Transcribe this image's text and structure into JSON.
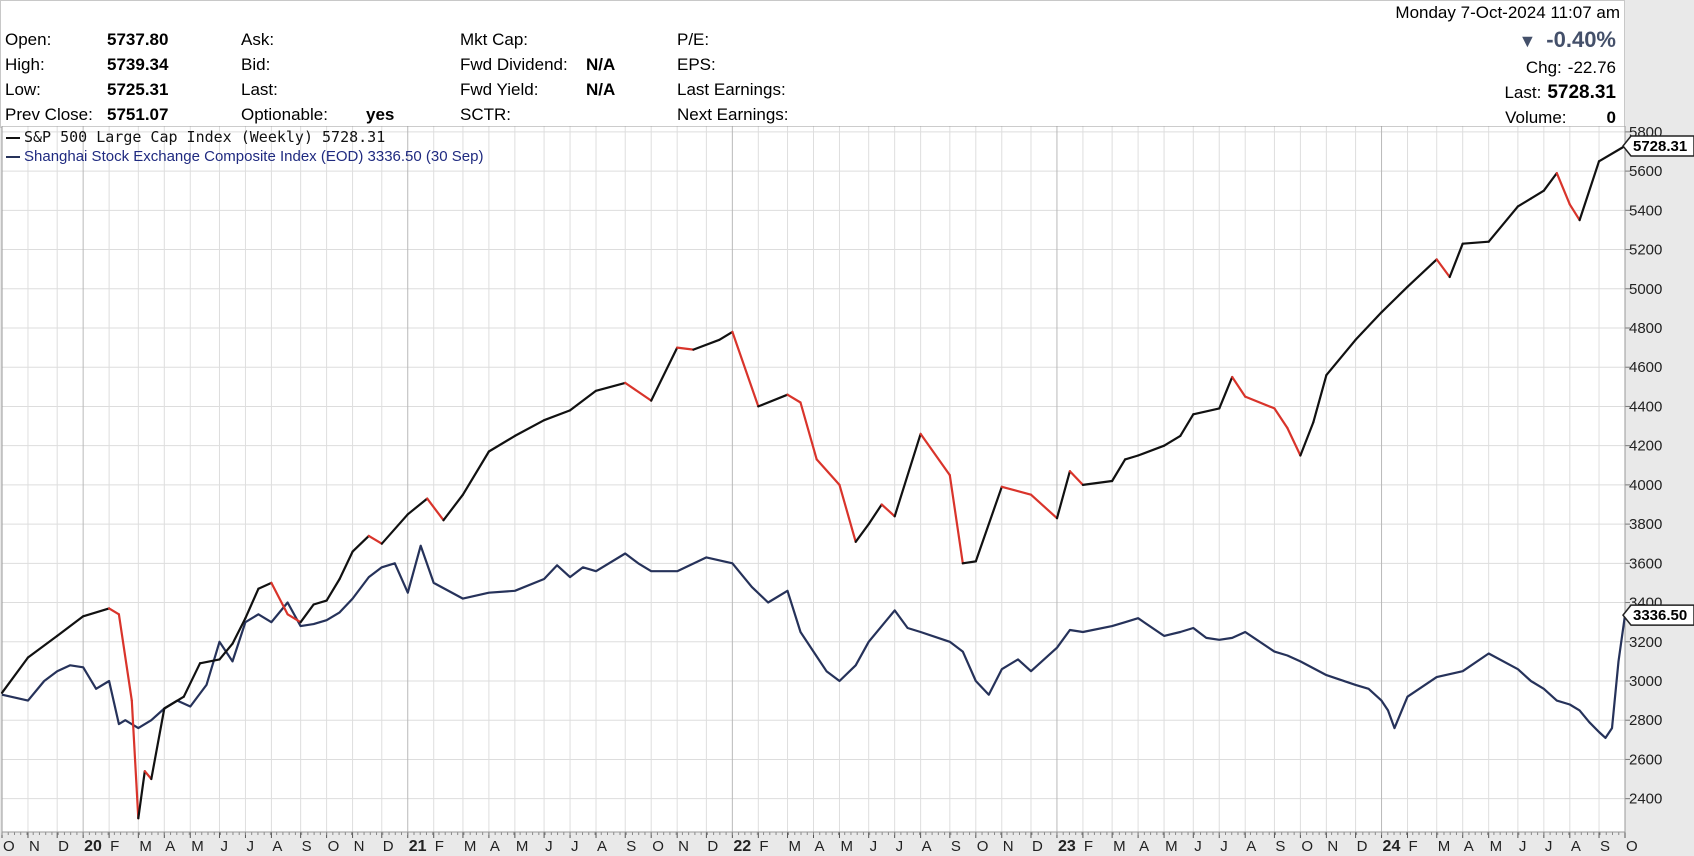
{
  "header": {
    "datetime": "Monday  7-Oct-2024  11:07 am",
    "col1": [
      {
        "label": "Open:",
        "value": "5737.80"
      },
      {
        "label": "High:",
        "value": "5739.34"
      },
      {
        "label": "Low:",
        "value": "5725.31"
      },
      {
        "label": "Prev Close:",
        "value": "5751.07"
      }
    ],
    "col2": [
      {
        "label": "Ask:",
        "value": ""
      },
      {
        "label": "Bid:",
        "value": ""
      },
      {
        "label": "Last:",
        "value": ""
      },
      {
        "label": "Optionable:",
        "value": "yes"
      }
    ],
    "col3": [
      {
        "label": "Mkt Cap:",
        "value": ""
      },
      {
        "label": "Fwd Dividend:",
        "value": "N/A"
      },
      {
        "label": "Fwd Yield:",
        "value": "N/A"
      },
      {
        "label": "SCTR:",
        "value": ""
      }
    ],
    "col4": [
      {
        "label": "P/E:",
        "value": ""
      },
      {
        "label": "EPS:",
        "value": ""
      },
      {
        "label": "Last Earnings:",
        "value": ""
      },
      {
        "label": "Next Earnings:",
        "value": ""
      }
    ],
    "pct_change": "-0.40%",
    "chg_label": "Chg:",
    "chg_value": "-22.76",
    "last_label": "Last:",
    "last_value": "5728.31",
    "volume_label": "Volume:",
    "volume_value": "0"
  },
  "chart_data": {
    "type": "line",
    "yticks": [
      2400,
      2600,
      2800,
      3000,
      3200,
      3400,
      3600,
      3800,
      4000,
      4200,
      4400,
      4600,
      4800,
      5000,
      5200,
      5400,
      5600,
      5800
    ],
    "ylim": [
      2230,
      5830
    ],
    "xlim": [
      2019.79,
      2024.79
    ],
    "x_tick_labels": [
      {
        "x": 2019.79,
        "label": "O"
      },
      {
        "x": 2019.87,
        "label": "N"
      },
      {
        "x": 2019.96,
        "label": "D"
      },
      {
        "x": 2020.04,
        "label": "20",
        "year": true
      },
      {
        "x": 2020.12,
        "label": "F"
      },
      {
        "x": 2020.21,
        "label": "M"
      },
      {
        "x": 2020.29,
        "label": "A"
      },
      {
        "x": 2020.37,
        "label": "M"
      },
      {
        "x": 2020.46,
        "label": "J"
      },
      {
        "x": 2020.54,
        "label": "J"
      },
      {
        "x": 2020.62,
        "label": "A"
      },
      {
        "x": 2020.71,
        "label": "S"
      },
      {
        "x": 2020.79,
        "label": "O"
      },
      {
        "x": 2020.87,
        "label": "N"
      },
      {
        "x": 2020.96,
        "label": "D"
      },
      {
        "x": 2021.04,
        "label": "21",
        "year": true
      },
      {
        "x": 2021.12,
        "label": "F"
      },
      {
        "x": 2021.21,
        "label": "M"
      },
      {
        "x": 2021.29,
        "label": "A"
      },
      {
        "x": 2021.37,
        "label": "M"
      },
      {
        "x": 2021.46,
        "label": "J"
      },
      {
        "x": 2021.54,
        "label": "J"
      },
      {
        "x": 2021.62,
        "label": "A"
      },
      {
        "x": 2021.71,
        "label": "S"
      },
      {
        "x": 2021.79,
        "label": "O"
      },
      {
        "x": 2021.87,
        "label": "N"
      },
      {
        "x": 2021.96,
        "label": "D"
      },
      {
        "x": 2022.04,
        "label": "22",
        "year": true
      },
      {
        "x": 2022.12,
        "label": "F"
      },
      {
        "x": 2022.21,
        "label": "M"
      },
      {
        "x": 2022.29,
        "label": "A"
      },
      {
        "x": 2022.37,
        "label": "M"
      },
      {
        "x": 2022.46,
        "label": "J"
      },
      {
        "x": 2022.54,
        "label": "J"
      },
      {
        "x": 2022.62,
        "label": "A"
      },
      {
        "x": 2022.71,
        "label": "S"
      },
      {
        "x": 2022.79,
        "label": "O"
      },
      {
        "x": 2022.87,
        "label": "N"
      },
      {
        "x": 2022.96,
        "label": "D"
      },
      {
        "x": 2023.04,
        "label": "23",
        "year": true
      },
      {
        "x": 2023.12,
        "label": "F"
      },
      {
        "x": 2023.21,
        "label": "M"
      },
      {
        "x": 2023.29,
        "label": "A"
      },
      {
        "x": 2023.37,
        "label": "M"
      },
      {
        "x": 2023.46,
        "label": "J"
      },
      {
        "x": 2023.54,
        "label": "J"
      },
      {
        "x": 2023.62,
        "label": "A"
      },
      {
        "x": 2023.71,
        "label": "S"
      },
      {
        "x": 2023.79,
        "label": "O"
      },
      {
        "x": 2023.87,
        "label": "N"
      },
      {
        "x": 2023.96,
        "label": "D"
      },
      {
        "x": 2024.04,
        "label": "24",
        "year": true
      },
      {
        "x": 2024.12,
        "label": "F"
      },
      {
        "x": 2024.21,
        "label": "M"
      },
      {
        "x": 2024.29,
        "label": "A"
      },
      {
        "x": 2024.37,
        "label": "M"
      },
      {
        "x": 2024.46,
        "label": "J"
      },
      {
        "x": 2024.54,
        "label": "J"
      },
      {
        "x": 2024.62,
        "label": "A"
      },
      {
        "x": 2024.71,
        "label": "S"
      },
      {
        "x": 2024.79,
        "label": "O"
      }
    ],
    "grid": true,
    "legend_position": "top-left",
    "series": [
      {
        "name": "S&P 500 Large Cap Index (Weekly) 5728.31",
        "color": "#111111",
        "down_color": "#d9342b",
        "last_label": "5728.31",
        "x": [
          2019.79,
          2019.87,
          2019.96,
          2020.04,
          2020.12,
          2020.15,
          2020.19,
          2020.21,
          2020.23,
          2020.25,
          2020.29,
          2020.35,
          2020.4,
          2020.46,
          2020.5,
          2020.54,
          2020.58,
          2020.62,
          2020.67,
          2020.71,
          2020.75,
          2020.79,
          2020.83,
          2020.87,
          2020.92,
          2020.96,
          2021.04,
          2021.1,
          2021.15,
          2021.21,
          2021.29,
          2021.37,
          2021.46,
          2021.54,
          2021.62,
          2021.71,
          2021.79,
          2021.87,
          2021.92,
          2022.0,
          2022.04,
          2022.12,
          2022.21,
          2022.25,
          2022.3,
          2022.37,
          2022.42,
          2022.46,
          2022.5,
          2022.54,
          2022.62,
          2022.71,
          2022.75,
          2022.79,
          2022.87,
          2022.96,
          2023.04,
          2023.08,
          2023.12,
          2023.21,
          2023.25,
          2023.29,
          2023.37,
          2023.42,
          2023.46,
          2023.54,
          2023.58,
          2023.62,
          2023.71,
          2023.75,
          2023.79,
          2023.83,
          2023.87,
          2023.96,
          2024.04,
          2024.12,
          2024.21,
          2024.25,
          2024.29,
          2024.37,
          2024.46,
          2024.5,
          2024.54,
          2024.58,
          2024.62,
          2024.65,
          2024.71,
          2024.79
        ],
        "values": [
          2940,
          3120,
          3230,
          3330,
          3370,
          3340,
          2900,
          2300,
          2540,
          2500,
          2860,
          2920,
          3090,
          3110,
          3190,
          3320,
          3470,
          3500,
          3340,
          3300,
          3390,
          3410,
          3520,
          3660,
          3740,
          3700,
          3850,
          3930,
          3820,
          3950,
          4170,
          4250,
          4330,
          4380,
          4480,
          4520,
          4430,
          4700,
          4690,
          4740,
          4780,
          4400,
          4460,
          4420,
          4130,
          4000,
          3710,
          3800,
          3900,
          3840,
          4260,
          4050,
          3600,
          3610,
          3990,
          3950,
          3830,
          4070,
          4000,
          4020,
          4130,
          4150,
          4200,
          4250,
          4360,
          4390,
          4550,
          4450,
          4390,
          4290,
          4150,
          4320,
          4560,
          4740,
          4880,
          5010,
          5150,
          5060,
          5230,
          5240,
          5420,
          5460,
          5500,
          5590,
          5430,
          5350,
          5650,
          5728
        ]
      },
      {
        "name": "Shanghai Stock Exchange Composite Index (EOD) 3336.50 (30 Sep)",
        "color": "#26325a",
        "last_label": "3336.50",
        "x": [
          2019.79,
          2019.87,
          2019.92,
          2019.96,
          2020.0,
          2020.04,
          2020.08,
          2020.12,
          2020.15,
          2020.17,
          2020.21,
          2020.25,
          2020.29,
          2020.33,
          2020.37,
          2020.42,
          2020.46,
          2020.5,
          2020.54,
          2020.58,
          2020.62,
          2020.67,
          2020.71,
          2020.75,
          2020.79,
          2020.83,
          2020.87,
          2020.92,
          2020.96,
          2021.0,
          2021.04,
          2021.08,
          2021.12,
          2021.21,
          2021.29,
          2021.37,
          2021.46,
          2021.5,
          2021.54,
          2021.58,
          2021.62,
          2021.71,
          2021.75,
          2021.79,
          2021.87,
          2021.96,
          2022.04,
          2022.1,
          2022.15,
          2022.21,
          2022.25,
          2022.29,
          2022.33,
          2022.37,
          2022.42,
          2022.46,
          2022.54,
          2022.58,
          2022.62,
          2022.71,
          2022.75,
          2022.79,
          2022.83,
          2022.87,
          2022.92,
          2022.96,
          2023.04,
          2023.08,
          2023.12,
          2023.21,
          2023.25,
          2023.29,
          2023.37,
          2023.42,
          2023.46,
          2023.5,
          2023.54,
          2023.58,
          2023.62,
          2023.71,
          2023.75,
          2023.79,
          2023.87,
          2023.96,
          2024.0,
          2024.04,
          2024.06,
          2024.08,
          2024.12,
          2024.21,
          2024.29,
          2024.37,
          2024.46,
          2024.5,
          2024.54,
          2024.58,
          2024.62,
          2024.65,
          2024.68,
          2024.71,
          2024.73,
          2024.75,
          2024.77,
          2024.79
        ],
        "values": [
          2930,
          2900,
          3000,
          3050,
          3080,
          3070,
          2960,
          3000,
          2780,
          2800,
          2760,
          2800,
          2860,
          2900,
          2870,
          2980,
          3200,
          3100,
          3300,
          3340,
          3300,
          3400,
          3280,
          3290,
          3310,
          3350,
          3420,
          3530,
          3580,
          3600,
          3450,
          3690,
          3500,
          3420,
          3450,
          3460,
          3520,
          3590,
          3530,
          3580,
          3560,
          3650,
          3600,
          3560,
          3560,
          3630,
          3600,
          3480,
          3400,
          3460,
          3250,
          3150,
          3050,
          3000,
          3080,
          3200,
          3360,
          3270,
          3250,
          3200,
          3150,
          3000,
          2930,
          3060,
          3110,
          3050,
          3170,
          3260,
          3250,
          3280,
          3300,
          3320,
          3230,
          3250,
          3270,
          3220,
          3210,
          3220,
          3250,
          3150,
          3130,
          3100,
          3030,
          2980,
          2960,
          2900,
          2850,
          2760,
          2920,
          3020,
          3050,
          3140,
          3060,
          3000,
          2960,
          2900,
          2880,
          2850,
          2790,
          2740,
          2710,
          2760,
          3100,
          3336
        ]
      }
    ]
  }
}
